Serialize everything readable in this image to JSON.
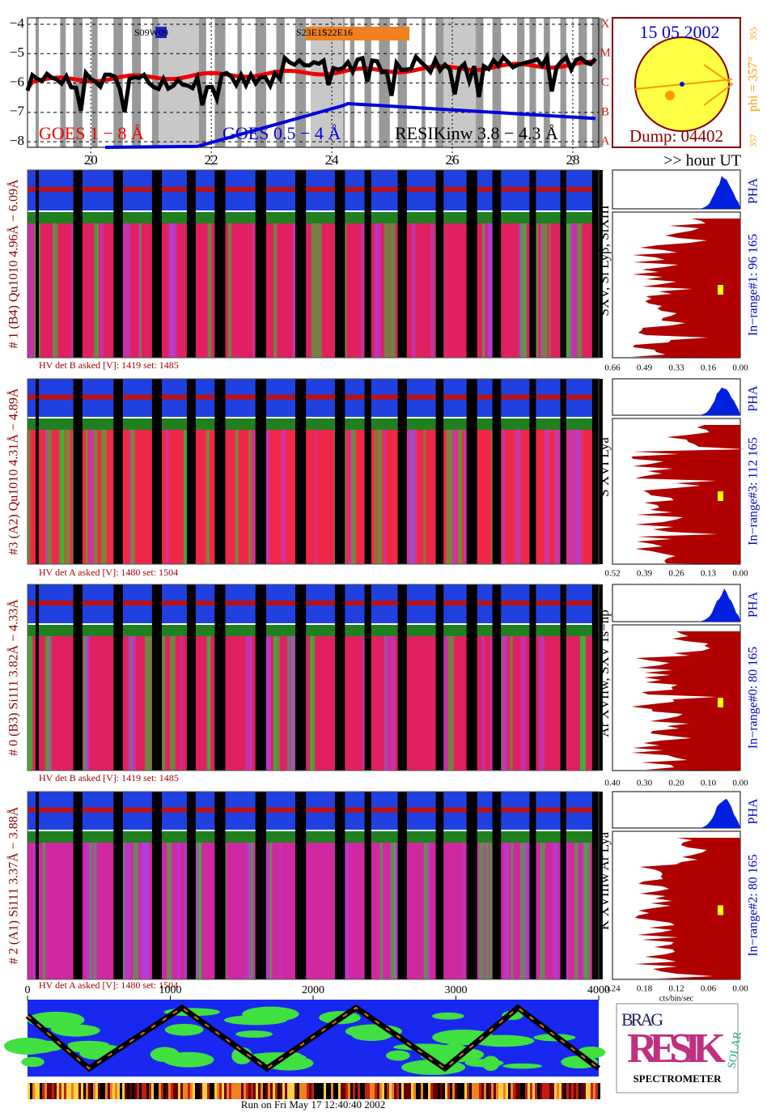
{
  "goes": {
    "yticks": [
      {
        "value": -4,
        "label": "−4"
      },
      {
        "value": -5,
        "label": "−5"
      },
      {
        "value": -6,
        "label": "−6"
      },
      {
        "value": -7,
        "label": "−7"
      },
      {
        "value": -8,
        "label": "−8"
      }
    ],
    "ylim": [
      -8.19,
      -3.78
    ],
    "class_labels": [
      "X",
      "M",
      "C",
      "B",
      "A"
    ],
    "xticks": [
      20,
      22,
      24,
      26,
      28
    ],
    "xlim": [
      18.95,
      28.43
    ],
    "legend": [
      "GOES 1 − 8 Å",
      "GOES 0.5 − 4 Å",
      "RESIKinw 3.8 − 4.3 Å"
    ],
    "annotations": [
      "S09W09",
      "S23E15",
      "S22E16"
    ],
    "hour_label": ">> hour UT"
  },
  "sun": {
    "date": "15 05 2002",
    "dump": "Dump: 04402",
    "phi": "phi = 357°",
    "phi_sub": "355",
    "phi_left": "357"
  },
  "panels": [
    {
      "detector": "# 1 (B4) Qu1010 4.96Å − 6.09Å",
      "lines": "SXV, Si Lyβ, SiXIII",
      "range": "In−range#1:   96 165",
      "hv": "HV det B asked [V]:  1419 set:  1485",
      "pha": "PHA",
      "ticks": [
        "0.66",
        "0.49",
        "0.33",
        "0.16",
        "0.00"
      ]
    },
    {
      "detector": "#3 (A2) Qu1010  4.31Å − 4.89Å",
      "lines": "S XVI Lya",
      "range": "In−range#3:   112 165",
      "hv": "HV det A asked [V]:  1480 set:  1504",
      "pha": "PHA",
      "ticks": [
        "0.52",
        "0.39",
        "0.26",
        "0.13",
        "0.00"
      ]
    },
    {
      "detector": "# 0 (B3) Si111  3.82Å − 4.33Å",
      "lines": "Ar XVIIw,  SXV 1s−np",
      "range": "In−range#0:   80 165",
      "hv": "HV det B asked [V]:  1419 set:  1485",
      "pha": "PHA",
      "ticks": [
        "0.40",
        "0.30",
        "0.20",
        "0.10",
        "0.00"
      ]
    },
    {
      "detector": "# 2 (A1) Si111  3.37Å − 3.88Å",
      "lines": "K XVIIIw  Ar Lya",
      "range": "In−range#2:   80 165",
      "hv": "HV det A asked [V]:  1480 set:  1504",
      "pha": "PHA",
      "ticks": [
        "0.24",
        "0.18",
        "0.12",
        "0.06",
        "0.00"
      ]
    }
  ],
  "spectrum_unit": "cts/bin/sec",
  "bottom": {
    "xticks": [
      0,
      1000,
      2000,
      3000,
      4000
    ],
    "xlim": [
      0,
      4000
    ],
    "run": "Run on Fri May 17 12:40:40 2002"
  },
  "logo": {
    "bragg": "BRAG",
    "resik": "RESIK",
    "solar": "SOLAR",
    "caption": "SPECTROMETER"
  }
}
